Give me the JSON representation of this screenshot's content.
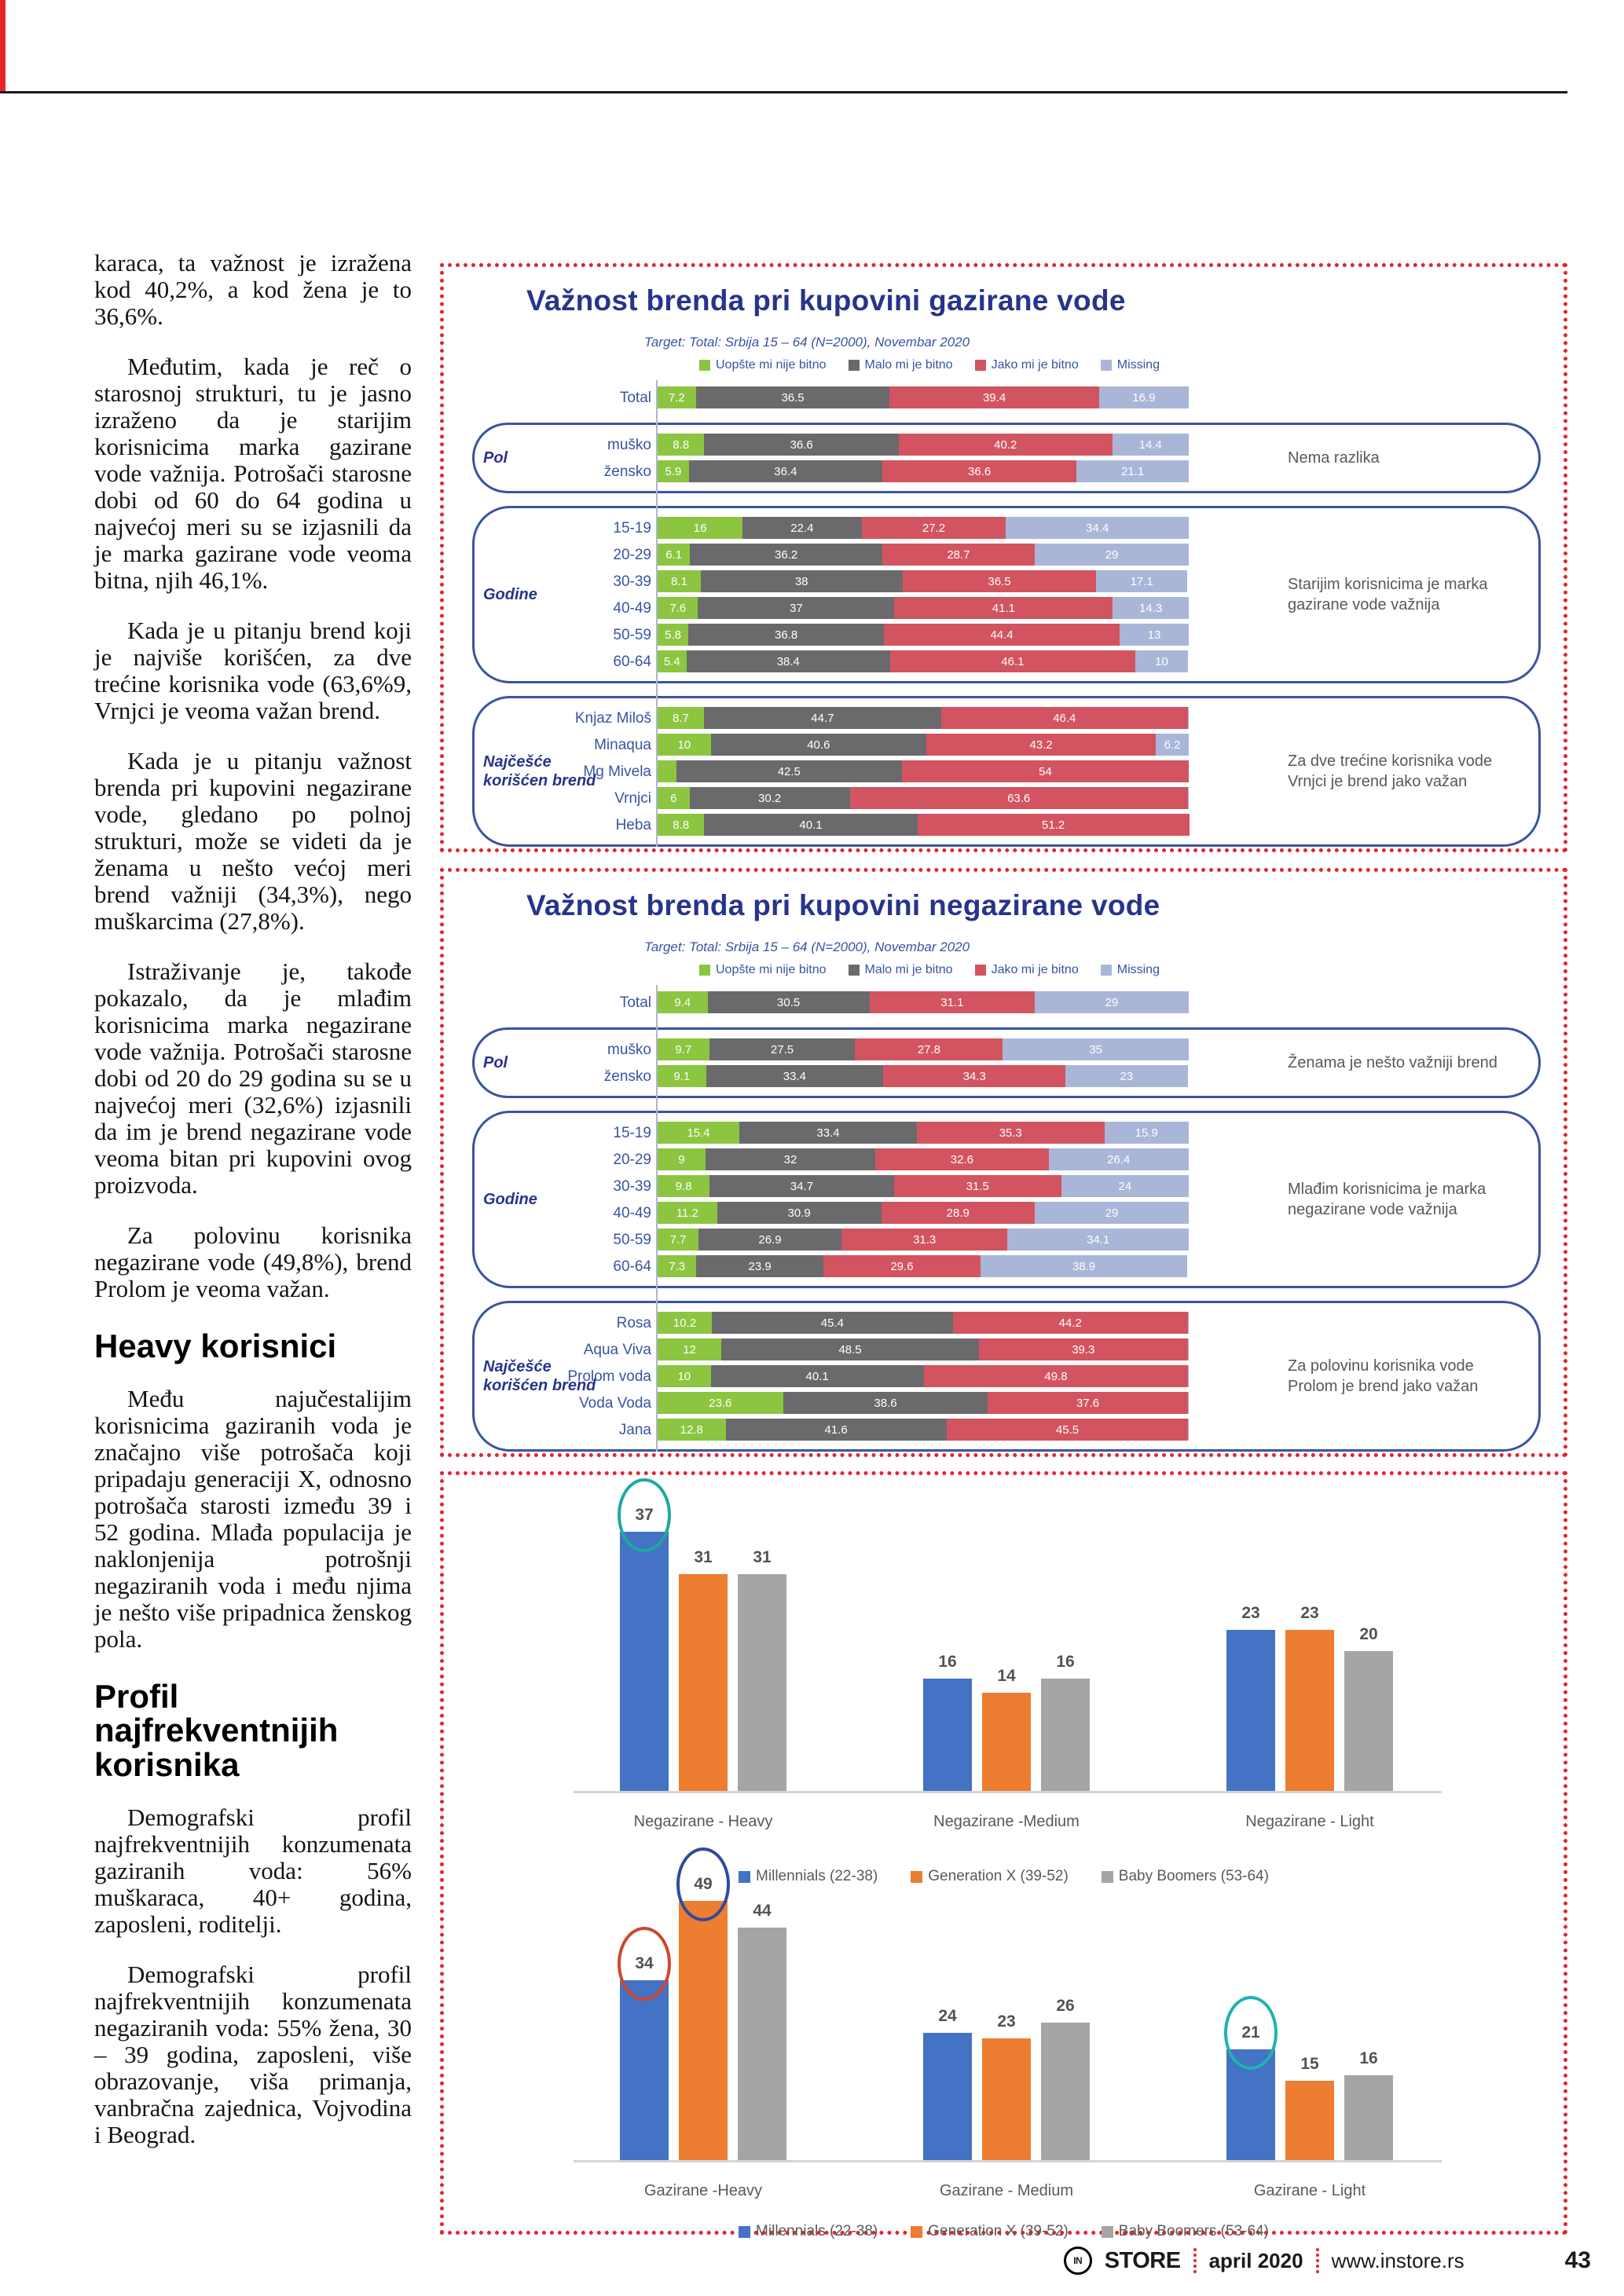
{
  "article": {
    "blocks": [
      {
        "kind": "p_noindent",
        "text": "karaca, ta važnost je izražena kod 40,2%, a kod žena je to 36,6%."
      },
      {
        "kind": "p",
        "text": "Međutim, kada je reč o starosnoj strukturi, tu je jasno izraženo da je starijim korisnicima marka gazirane vode važnija. Potrošači starosne dobi od 60 do 64 godina u najvećoj meri su se izjasnili da je marka gazirane vode veoma bitna, njih 46,1%."
      },
      {
        "kind": "p",
        "text": "Kada je u pitanju brend koji je najviše korišćen, za dve trećine korisnika vode (63,6%9, Vrnjci je veoma važan brend."
      },
      {
        "kind": "p",
        "text": "Kada je u pitanju važnost brenda pri kupovini negazirane vode, gledano po polnoj strukturi, može se videti da je ženama u nešto većoj meri brend važniji (34,3%), nego muškarcima (27,8%)."
      },
      {
        "kind": "p",
        "text": "Istraživanje je, takođe pokazalo, da je mlađim korisnicima marka negazirane vode važnija. Potrošači starosne dobi od 20 do 29 godina su se u najvećoj meri (32,6%) izjasnili da im je brend negazirane vode veoma bitan pri kupovini ovog proizvoda."
      },
      {
        "kind": "p",
        "text": "Za polovinu korisnika negazirane vode (49,8%), brend Prolom je veoma važan."
      },
      {
        "kind": "h",
        "text": "Heavy korisnici"
      },
      {
        "kind": "p",
        "text": "Među najučestalijim korisnicima gaziranih voda je značajno više potrošača koji pripadaju generaciji X, odnosno potrošača starosti između 39 i 52 godina. Mlađa populacija je naklonjenija potrošnji negaziranih voda i među njima je nešto više pripadnica ženskog pola."
      },
      {
        "kind": "h",
        "text": "Profil najfrekventnijih korisnika"
      },
      {
        "kind": "p",
        "text": "Demografski profil najfrekventnijih konzumenata gaziranih voda: 56% muškaraca, 40+ godina, zaposleni, roditelji."
      },
      {
        "kind": "p",
        "text": "Demografski profil najfrekventnijih konzumenata negaziranih voda: 55% žena, 30 – 39 godina, zaposleni, više obrazovanje, viša primanja, vanbračna zajednica, Vojvodina i Beograd."
      }
    ]
  },
  "footer": {
    "logo_initials": "IN",
    "brand": "STORE",
    "issue": "april 2020",
    "site": "www.instore.rs",
    "page_number": "43"
  },
  "accent_colors": {
    "dotted_border_red": "#E8232A",
    "title_blue": "#27348B",
    "label_blue": "#3A53A4"
  },
  "chart_data": [
    {
      "id": "brand-importance-gazirane",
      "type": "bar",
      "orientation": "horizontal-stacked",
      "title": "Važnost brenda pri kupovini gazirane vode",
      "subtitle": "Target: Total: Srbija 15 – 64 (N=2000), Novembar 2020",
      "legend": [
        "Uopšte mi nije bitno",
        "Malo mi je bitno",
        "Jako mi je bitno",
        "Missing"
      ],
      "colors": [
        "#8CC540",
        "#6A6A6D",
        "#D25460",
        "#A9B6D8"
      ],
      "xlim": [
        0,
        100
      ],
      "total_row": {
        "label": "Total",
        "values": [
          7.2,
          36.5,
          39.4,
          16.9
        ]
      },
      "groups": [
        {
          "label": "Pol",
          "annotation": "Nema razlika",
          "rows": [
            {
              "label": "muško",
              "values": [
                8.8,
                36.6,
                40.2,
                14.4
              ]
            },
            {
              "label": "žensko",
              "values": [
                5.9,
                36.4,
                36.6,
                21.1
              ]
            }
          ]
        },
        {
          "label": "Godine",
          "annotation": "Starijim korisnicima je marka gazirane vode važnija",
          "rows": [
            {
              "label": "15-19",
              "values": [
                16,
                22.4,
                27.2,
                34.4
              ]
            },
            {
              "label": "20-29",
              "values": [
                6.1,
                36.2,
                28.7,
                29
              ]
            },
            {
              "label": "30-39",
              "values": [
                8.1,
                38,
                36.5,
                17.1
              ]
            },
            {
              "label": "40-49",
              "values": [
                7.6,
                37,
                41.1,
                14.3
              ]
            },
            {
              "label": "50-59",
              "values": [
                5.8,
                36.8,
                44.4,
                13
              ]
            },
            {
              "label": "60-64",
              "values": [
                5.4,
                38.4,
                46.1,
                10
              ]
            }
          ]
        },
        {
          "label": "Najčešće korišćen brend",
          "annotation": "Za dve trećine korisnika vode Vrnjci je brend jako važan",
          "rows": [
            {
              "label": "Knjaz Miloš",
              "values": [
                8.7,
                44.7,
                46.4,
                0.2
              ]
            },
            {
              "label": "Minaqua",
              "values": [
                10,
                40.6,
                43.2,
                6.2
              ]
            },
            {
              "label": "Mg Mivela",
              "values": [
                3.5,
                42.5,
                54,
                0
              ]
            },
            {
              "label": "Vrnjci",
              "values": [
                6,
                30.2,
                63.6,
                0.2
              ]
            },
            {
              "label": "Heba",
              "values": [
                8.8,
                40.1,
                51.2,
                0
              ]
            }
          ]
        }
      ]
    },
    {
      "id": "brand-importance-negazirane",
      "type": "bar",
      "orientation": "horizontal-stacked",
      "title": "Važnost brenda pri kupovini negazirane vode",
      "subtitle": "Target: Total: Srbija 15 – 64 (N=2000), Novembar 2020",
      "legend": [
        "Uopšte mi nije bitno",
        "Malo mi je bitno",
        "Jako mi je bitno",
        "Missing"
      ],
      "colors": [
        "#8CC540",
        "#6A6A6D",
        "#D25460",
        "#A9B6D8"
      ],
      "xlim": [
        0,
        100
      ],
      "total_row": {
        "label": "Total",
        "values": [
          9.4,
          30.5,
          31.1,
          29
        ]
      },
      "groups": [
        {
          "label": "Pol",
          "annotation": "Ženama je nešto važniji brend",
          "rows": [
            {
              "label": "muško",
              "values": [
                9.7,
                27.5,
                27.8,
                35
              ]
            },
            {
              "label": "žensko",
              "values": [
                9.1,
                33.4,
                34.3,
                23
              ]
            }
          ]
        },
        {
          "label": "Godine",
          "annotation": "Mlađim korisnicima je marka negazirane vode važnija",
          "rows": [
            {
              "label": "15-19",
              "values": [
                15.4,
                33.4,
                35.3,
                15.9
              ]
            },
            {
              "label": "20-29",
              "values": [
                9,
                32,
                32.6,
                26.4
              ]
            },
            {
              "label": "30-39",
              "values": [
                9.8,
                34.7,
                31.5,
                24
              ]
            },
            {
              "label": "40-49",
              "values": [
                11.2,
                30.9,
                28.9,
                29
              ]
            },
            {
              "label": "50-59",
              "values": [
                7.7,
                26.9,
                31.3,
                34.1
              ]
            },
            {
              "label": "60-64",
              "values": [
                7.3,
                23.9,
                29.6,
                38.9
              ]
            }
          ]
        },
        {
          "label": "Najčešće korišćen brend",
          "annotation": "Za polovinu korisnika vode Prolom je brend jako važan",
          "rows": [
            {
              "label": "Rosa",
              "values": [
                10.2,
                45.4,
                44.2,
                0.2
              ]
            },
            {
              "label": "Aqua Viva",
              "values": [
                12,
                48.5,
                39.3,
                0.2
              ]
            },
            {
              "label": "Prolom voda",
              "values": [
                10,
                40.1,
                49.8,
                0.1
              ]
            },
            {
              "label": "Voda Voda",
              "values": [
                23.6,
                38.6,
                37.6,
                0.2
              ]
            },
            {
              "label": "Jana",
              "values": [
                12.8,
                41.6,
                45.5,
                0.1
              ]
            }
          ]
        }
      ]
    },
    {
      "id": "generations-negazirane",
      "type": "bar",
      "orientation": "vertical-grouped",
      "categories": [
        "Negazirane - Heavy",
        "Negazirane -Medium",
        "Negazirane - Light"
      ],
      "series": [
        {
          "name": "Millennials (22-38)",
          "color": "#4472C4",
          "values": [
            37,
            16,
            23
          ]
        },
        {
          "name": "Generation X (39-52)",
          "color": "#ED7D31",
          "values": [
            31,
            14,
            23
          ]
        },
        {
          "name": "Baby Boomers (53-64)",
          "color": "#A5A5A5",
          "values": [
            31,
            16,
            20
          ]
        }
      ],
      "highlights": [
        {
          "category": 0,
          "series": 0,
          "circle_color": "#1FA8A0"
        }
      ]
    },
    {
      "id": "generations-gazirane",
      "type": "bar",
      "orientation": "vertical-grouped",
      "categories": [
        "Gazirane -Heavy",
        "Gazirane - Medium",
        "Gazirane - Light"
      ],
      "series": [
        {
          "name": "Millennials (22-38)",
          "color": "#4472C4",
          "values": [
            34,
            24,
            21
          ]
        },
        {
          "name": "Generation X (39-52)",
          "color": "#ED7D31",
          "values": [
            49,
            23,
            15
          ]
        },
        {
          "name": "Baby Boomers (53-64)",
          "color": "#A5A5A5",
          "values": [
            44,
            26,
            16
          ]
        }
      ],
      "highlights": [
        {
          "category": 0,
          "series": 0,
          "circle_color": "#CE472E"
        },
        {
          "category": 0,
          "series": 1,
          "circle_color": "#2F4B9E"
        },
        {
          "category": 2,
          "series": 0,
          "circle_color": "#1FB3AE"
        }
      ]
    }
  ]
}
